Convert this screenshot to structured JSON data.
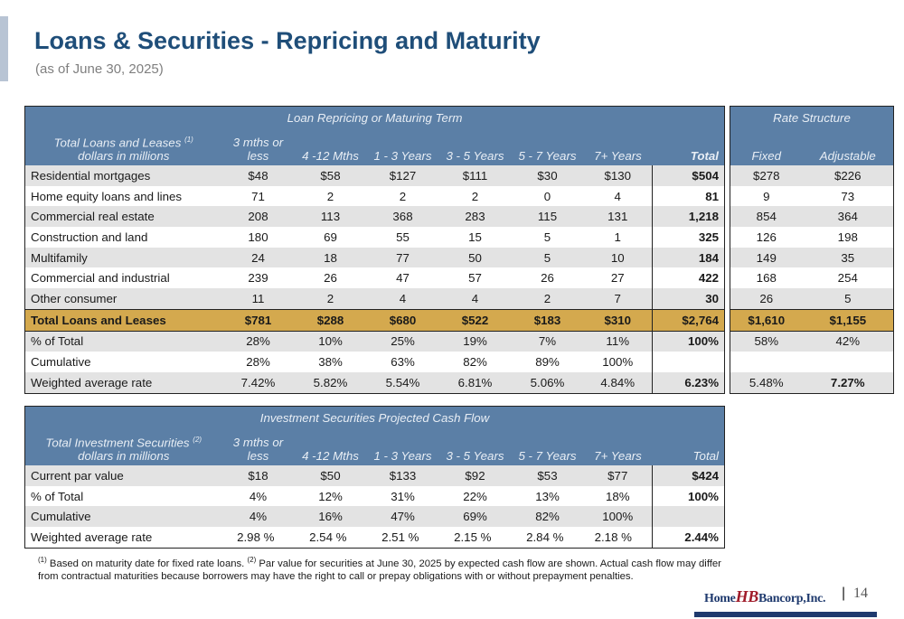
{
  "title": "Loans & Securities - Repricing and Maturity",
  "subtitle": "(as of June 30, 2025)",
  "loans": {
    "group_header": "Loan Repricing or Maturing Term",
    "rate_header": "Rate Structure",
    "col_label_line1": "Total Loans and Leases",
    "col_label_sup": "(1)",
    "col_label_line2": "dollars in millions",
    "col_3m_line1": "3 mths or",
    "col_3m_line2": "less",
    "col_412": "4 -12 Mths",
    "col_13": "1 - 3 Years",
    "col_35": "3 - 5 Years",
    "col_57": "5 - 7 Years",
    "col_7p": "7+ Years",
    "col_total": "Total",
    "col_fixed": "Fixed",
    "col_adj": "Adjustable",
    "rows": [
      {
        "label": "Residential mortgages",
        "v": [
          "$48",
          "$58",
          "$127",
          "$111",
          "$30",
          "$130"
        ],
        "total": "$504",
        "fixed": "$278",
        "adj": "$226"
      },
      {
        "label": "Home equity loans and lines",
        "v": [
          "71",
          "2",
          "2",
          "2",
          "0",
          "4"
        ],
        "total": "81",
        "fixed": "9",
        "adj": "73"
      },
      {
        "label": "Commercial real estate",
        "v": [
          "208",
          "113",
          "368",
          "283",
          "115",
          "131"
        ],
        "total": "1,218",
        "fixed": "854",
        "adj": "364"
      },
      {
        "label": "Construction and land",
        "v": [
          "180",
          "69",
          "55",
          "15",
          "5",
          "1"
        ],
        "total": "325",
        "fixed": "126",
        "adj": "198"
      },
      {
        "label": "Multifamily",
        "v": [
          "24",
          "18",
          "77",
          "50",
          "5",
          "10"
        ],
        "total": "184",
        "fixed": "149",
        "adj": "35"
      },
      {
        "label": "Commercial and industrial",
        "v": [
          "239",
          "26",
          "47",
          "57",
          "26",
          "27"
        ],
        "total": "422",
        "fixed": "168",
        "adj": "254"
      },
      {
        "label": "Other consumer",
        "v": [
          "11",
          "2",
          "4",
          "4",
          "2",
          "7"
        ],
        "total": "30",
        "fixed": "26",
        "adj": "5"
      }
    ],
    "total_row": {
      "label": "Total Loans and Leases",
      "v": [
        "$781",
        "$288",
        "$680",
        "$522",
        "$183",
        "$310"
      ],
      "total": "$2,764",
      "fixed": "$1,610",
      "adj": "$1,155"
    },
    "pct_row": {
      "label": "% of Total",
      "v": [
        "28%",
        "10%",
        "25%",
        "19%",
        "7%",
        "11%"
      ],
      "total": "100%",
      "fixed": "58%",
      "adj": "42%"
    },
    "cum_row": {
      "label": "Cumulative",
      "v": [
        "28%",
        "38%",
        "63%",
        "82%",
        "89%",
        "100%"
      ],
      "total": "",
      "fixed": "",
      "adj": ""
    },
    "rate_row": {
      "label": "Weighted average rate",
      "v": [
        "7.42%",
        "5.82%",
        "5.54%",
        "6.81%",
        "5.06%",
        "4.84%"
      ],
      "total": "6.23%",
      "fixed": "5.48%",
      "adj": "7.27%"
    }
  },
  "securities": {
    "group_header": "Investment Securities Projected Cash Flow",
    "col_label_line1": "Total Investment Securities",
    "col_label_sup": "(2)",
    "col_label_line2": "dollars in millions",
    "col_3m_line1": "3 mths or",
    "col_3m_line2": "less",
    "col_412": "4 -12 Mths",
    "col_13": "1 - 3 Years",
    "col_35": "3 - 5 Years",
    "col_57": "5 - 7 Years",
    "col_7p": "7+ Years",
    "col_total": "Total",
    "rows": [
      {
        "label": "Current par value",
        "v": [
          "$18",
          "$50",
          "$133",
          "$92",
          "$53",
          "$77"
        ],
        "total": "$424"
      },
      {
        "label": "% of Total",
        "v": [
          "4%",
          "12%",
          "31%",
          "22%",
          "13%",
          "18%"
        ],
        "total": "100%"
      },
      {
        "label": "Cumulative",
        "v": [
          "4%",
          "16%",
          "47%",
          "69%",
          "82%",
          "100%"
        ],
        "total": ""
      },
      {
        "label": "Weighted average rate",
        "v": [
          "2.98 %",
          "2.54 %",
          "2.51 %",
          "2.15 %",
          "2.84 %",
          "2.18 %"
        ],
        "total": "2.44%"
      }
    ]
  },
  "footnote": {
    "sup1": "(1)",
    "text1": " Based on maturity date for fixed rate loans. ",
    "sup2": "(2)",
    "text2": " Par value for securities at June 30, 2025 by expected cash flow are shown.  Actual cash flow may differ from contractual maturities because borrowers may have the right to call or prepay obligations with or without prepayment penalties."
  },
  "logo": {
    "home": "Home",
    "hb": "HB",
    "bancorp": "Bancorp,Inc."
  },
  "page_number": "14"
}
